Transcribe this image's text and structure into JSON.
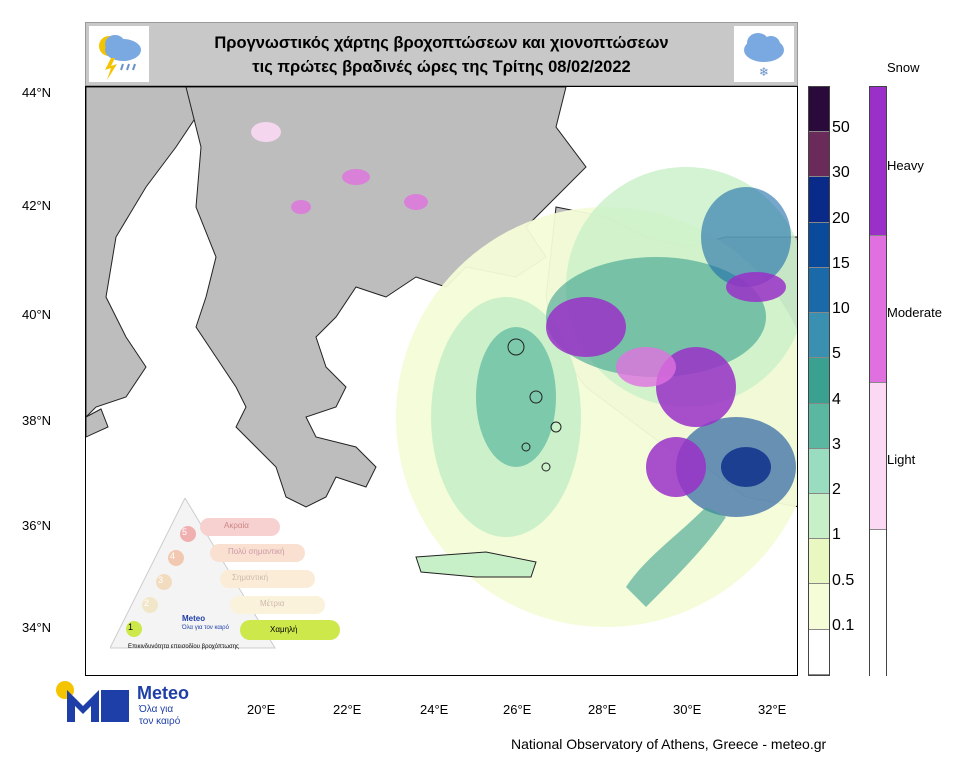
{
  "title": {
    "line1": "Προγνωστικός χάρτης βροχοπτώσεων και χιονοπτώσεων",
    "line2": "τις πρώτες βραδινές ώρες της Τρίτης 08/02/2022"
  },
  "latitude_labels": [
    "44°N",
    "42°N",
    "40°N",
    "38°N",
    "36°N",
    "34°N"
  ],
  "longitude_labels": [
    "20°E",
    "22°E",
    "24°E",
    "26°E",
    "28°E",
    "30°E",
    "32°E"
  ],
  "rain_scale": {
    "labels": [
      "50",
      "30",
      "20",
      "15",
      "10",
      "5",
      "4",
      "3",
      "2",
      "1",
      "0.5",
      "0.1"
    ],
    "colors": [
      "#2a0a3a",
      "#6a2a5a",
      "#0a2a8a",
      "#0a4a9a",
      "#1a6aaa",
      "#3a90b0",
      "#3aa090",
      "#5ab8a0",
      "#9adcc0",
      "#c8f0c8",
      "#e8f8c0",
      "#f4fcd8",
      "#ffffff"
    ]
  },
  "snow_scale": {
    "title": "Snow",
    "labels": [
      "Heavy",
      "Moderate",
      "Light"
    ],
    "colors": [
      "#9a30c8",
      "#e070e0",
      "#fbd8f4",
      "#ffffff"
    ]
  },
  "risk_legend": {
    "levels": [
      "5",
      "4",
      "3",
      "2",
      "1"
    ],
    "labels": [
      "Ακραία",
      "Πολύ σημαντική",
      "Σημαντική",
      "Μέτρια",
      "Χαμηλή"
    ],
    "caption": "Επικινδυνότητα επεισοδίου βροχόπτωσης",
    "brand_small": "Meteo",
    "slogan_small": "Όλα για τον καιρό"
  },
  "brand": {
    "name": "Meteo",
    "slogan_line1": "Όλα για",
    "slogan_line2": "τον καιρό"
  },
  "footer": "National Observatory of Athens, Greece - meteo.gr",
  "icons": [
    "thunderstorm-rain-icon",
    "snow-cloud-icon",
    "rain-cloud-icon"
  ]
}
